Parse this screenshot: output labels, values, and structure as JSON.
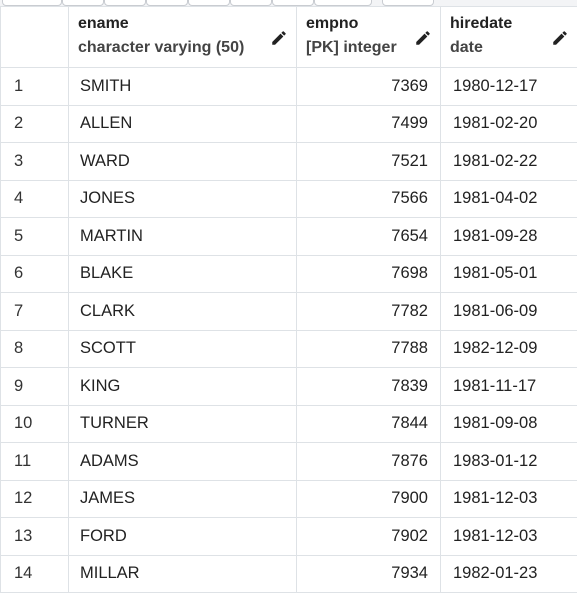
{
  "grid": {
    "columns": [
      {
        "name": "ename",
        "type": "character varying (50)"
      },
      {
        "name": "empno",
        "type": "[PK] integer"
      },
      {
        "name": "hiredate",
        "type": "date"
      }
    ],
    "rows": [
      {
        "num": "1",
        "ename": "SMITH",
        "empno": "7369",
        "hiredate": "1980-12-17"
      },
      {
        "num": "2",
        "ename": "ALLEN",
        "empno": "7499",
        "hiredate": "1981-02-20"
      },
      {
        "num": "3",
        "ename": "WARD",
        "empno": "7521",
        "hiredate": "1981-02-22"
      },
      {
        "num": "4",
        "ename": "JONES",
        "empno": "7566",
        "hiredate": "1981-04-02"
      },
      {
        "num": "5",
        "ename": "MARTIN",
        "empno": "7654",
        "hiredate": "1981-09-28"
      },
      {
        "num": "6",
        "ename": "BLAKE",
        "empno": "7698",
        "hiredate": "1981-05-01"
      },
      {
        "num": "7",
        "ename": "CLARK",
        "empno": "7782",
        "hiredate": "1981-06-09"
      },
      {
        "num": "8",
        "ename": "SCOTT",
        "empno": "7788",
        "hiredate": "1982-12-09"
      },
      {
        "num": "9",
        "ename": "KING",
        "empno": "7839",
        "hiredate": "1981-11-17"
      },
      {
        "num": "10",
        "ename": "TURNER",
        "empno": "7844",
        "hiredate": "1981-09-08"
      },
      {
        "num": "11",
        "ename": "ADAMS",
        "empno": "7876",
        "hiredate": "1983-01-12"
      },
      {
        "num": "12",
        "ename": "JAMES",
        "empno": "7900",
        "hiredate": "1981-12-03"
      },
      {
        "num": "13",
        "ename": "FORD",
        "empno": "7902",
        "hiredate": "1981-12-03"
      },
      {
        "num": "14",
        "ename": "MILLAR",
        "empno": "7934",
        "hiredate": "1982-01-23"
      }
    ]
  },
  "icons": {
    "column_edit": "pencil-icon"
  },
  "colors": {
    "grid_border": "#dee2e6",
    "header_text": "#222222",
    "type_text": "#444444"
  }
}
